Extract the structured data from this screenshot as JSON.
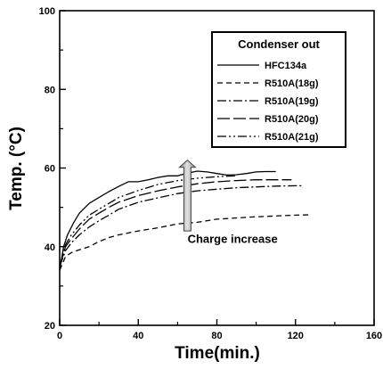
{
  "chart_data": {
    "type": "line",
    "xlabel": "Time(min.)",
    "ylabel": "Temp. (°C)",
    "xlim": [
      0,
      160
    ],
    "ylim": [
      20,
      100
    ],
    "xticks": [
      0,
      40,
      80,
      120,
      160
    ],
    "yticks": [
      20,
      40,
      60,
      80,
      100
    ],
    "grid": false,
    "legend": {
      "title": "Condenser out",
      "position": "top-right"
    },
    "series": [
      {
        "name": "HFC134a",
        "dash": "solid",
        "x": [
          0,
          2,
          4,
          7,
          10,
          15,
          20,
          25,
          30,
          35,
          40,
          45,
          50,
          55,
          60,
          65,
          70,
          75,
          80,
          85,
          90,
          95,
          100,
          105,
          110
        ],
        "y": [
          34,
          40,
          43,
          46,
          48.5,
          51,
          52.5,
          54,
          55.3,
          56.5,
          56.5,
          57,
          57.6,
          58,
          58,
          58.7,
          59.2,
          59,
          58.6,
          58.2,
          58.3,
          58.6,
          59,
          59.1,
          59.1
        ]
      },
      {
        "name": "R510A(18g)",
        "dash": "dashed",
        "x": [
          0,
          3,
          6,
          10,
          15,
          20,
          25,
          30,
          40,
          50,
          60,
          70,
          80,
          90,
          100,
          110,
          120,
          127
        ],
        "y": [
          34,
          37.5,
          38.5,
          39.2,
          40,
          41.3,
          42.3,
          43,
          44,
          44.8,
          45.8,
          46.2,
          47,
          47.3,
          47.6,
          47.8,
          48,
          48.1
        ]
      },
      {
        "name": "R510A(19g)",
        "dash": "dashdot",
        "x": [
          0,
          3,
          6,
          10,
          15,
          20,
          25,
          30,
          40,
          50,
          60,
          70,
          80,
          90,
          100,
          110,
          120,
          123
        ],
        "y": [
          35,
          39,
          41,
          43,
          45,
          46.6,
          48,
          49.5,
          51.3,
          52.4,
          53.5,
          54.2,
          54.6,
          55,
          55.2,
          55.4,
          55.5,
          55.5
        ]
      },
      {
        "name": "R510A(20g)",
        "dash": "longdash",
        "x": [
          0,
          3,
          6,
          10,
          15,
          20,
          25,
          30,
          40,
          50,
          60,
          70,
          80,
          90,
          100,
          110,
          118
        ],
        "y": [
          35,
          40,
          42,
          44.5,
          47,
          48.5,
          50,
          51.3,
          53,
          54.2,
          55.2,
          56,
          56.5,
          56.8,
          57,
          57,
          57
        ]
      },
      {
        "name": "R510A(21g)",
        "dash": "dashdotdot",
        "x": [
          0,
          3,
          6,
          10,
          15,
          20,
          25,
          30,
          40,
          50,
          60,
          70,
          80,
          90
        ],
        "y": [
          35,
          40.5,
          43,
          45.5,
          48,
          49.5,
          51,
          52.5,
          54.3,
          55.8,
          56.8,
          57.4,
          57.8,
          58
        ]
      }
    ],
    "annotations": [
      {
        "text": "Charge increase",
        "x": 88,
        "y": 41
      }
    ],
    "arrow": {
      "x": 65,
      "y_start": 44,
      "y_end": 62
    }
  }
}
